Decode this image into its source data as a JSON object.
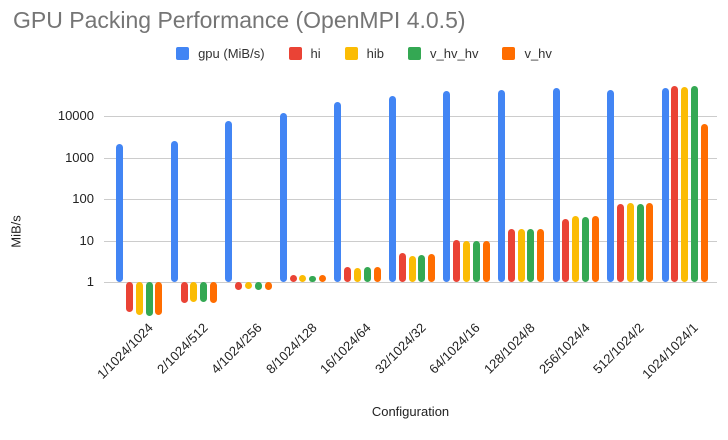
{
  "title": "GPU Packing Performance (OpenMPI 4.0.5)",
  "colors": {
    "title_text": "#757575",
    "axis_text": "#222222",
    "gridline": "#cccccc",
    "background": "#ffffff"
  },
  "chart_data": {
    "type": "bar",
    "title": "GPU Packing Performance (OpenMPI 4.0.5)",
    "xlabel": "Configuration",
    "ylabel": "MiB/s",
    "y_scale": "log",
    "y_ticks": [
      1,
      10,
      100,
      1000,
      10000
    ],
    "ylim": [
      0.13,
      60000
    ],
    "grid": true,
    "legend_position": "top-center",
    "categories": [
      "1/1024/1024",
      "2/1024/512",
      "4/1024/256",
      "8/1024/128",
      "16/1024/64",
      "32/1024/32",
      "64/1024/16",
      "128/1024/8",
      "256/1024/4",
      "512/1024/2",
      "1024/1024/1"
    ],
    "series": [
      {
        "name": "gpu (MiB/s)",
        "color": "#4285F4",
        "values": [
          2100,
          2450,
          7600,
          12000,
          22000,
          30000,
          40000,
          42000,
          46500,
          42500,
          48500
        ]
      },
      {
        "name": "hi",
        "color": "#EA4335",
        "values": [
          0.19,
          0.32,
          0.65,
          1.45,
          2.35,
          5.0,
          10.2,
          19.5,
          33,
          75,
          54000
        ]
      },
      {
        "name": "hib",
        "color": "#FBBC04",
        "values": [
          0.16,
          0.33,
          0.68,
          1.5,
          2.15,
          4.3,
          9.6,
          19.5,
          38,
          80,
          51000
        ]
      },
      {
        "name": "v_hv_hv",
        "color": "#34A853",
        "values": [
          0.15,
          0.33,
          0.65,
          1.4,
          2.25,
          4.5,
          9.6,
          19.5,
          37,
          78,
          54000
        ]
      },
      {
        "name": "v_hv",
        "color": "#FF6D00",
        "values": [
          0.16,
          0.32,
          0.66,
          1.45,
          2.3,
          4.7,
          9.8,
          19.0,
          39,
          80,
          6500
        ]
      }
    ]
  }
}
